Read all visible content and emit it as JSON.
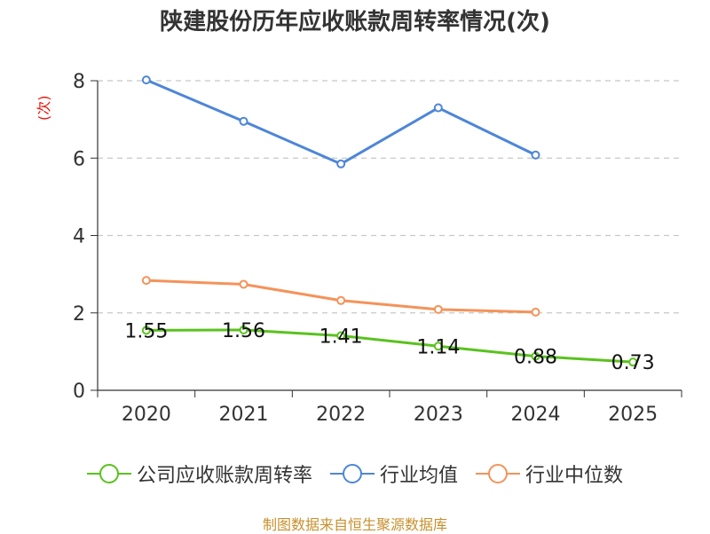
{
  "chart_data": {
    "type": "line",
    "title": "陕建股份历年应收账款周转率情况(次)",
    "ylabel": "(次)",
    "xlabel": "",
    "categories": [
      "2020",
      "2021",
      "2022",
      "2023",
      "2024",
      "2025"
    ],
    "ylim": [
      0,
      8
    ],
    "yticks": [
      0,
      2,
      4,
      6,
      8
    ],
    "grid": true,
    "legend_position": "bottom",
    "series": [
      {
        "name": "公司应收账款周转率",
        "color": "#5ac21e",
        "values": [
          1.55,
          1.56,
          1.41,
          1.14,
          0.88,
          0.73
        ],
        "labels": [
          "1.55",
          "1.56",
          "1.41",
          "1.14",
          "0.88",
          "0.73"
        ]
      },
      {
        "name": "行业均值",
        "color": "#4e86d8",
        "values": [
          8.02,
          6.95,
          5.85,
          7.3,
          6.08,
          null
        ]
      },
      {
        "name": "行业中位数",
        "color": "#f4935a",
        "values": [
          2.84,
          2.74,
          2.32,
          2.09,
          2.02,
          null
        ]
      }
    ],
    "source": "制图数据来自恒生聚源数据库"
  }
}
